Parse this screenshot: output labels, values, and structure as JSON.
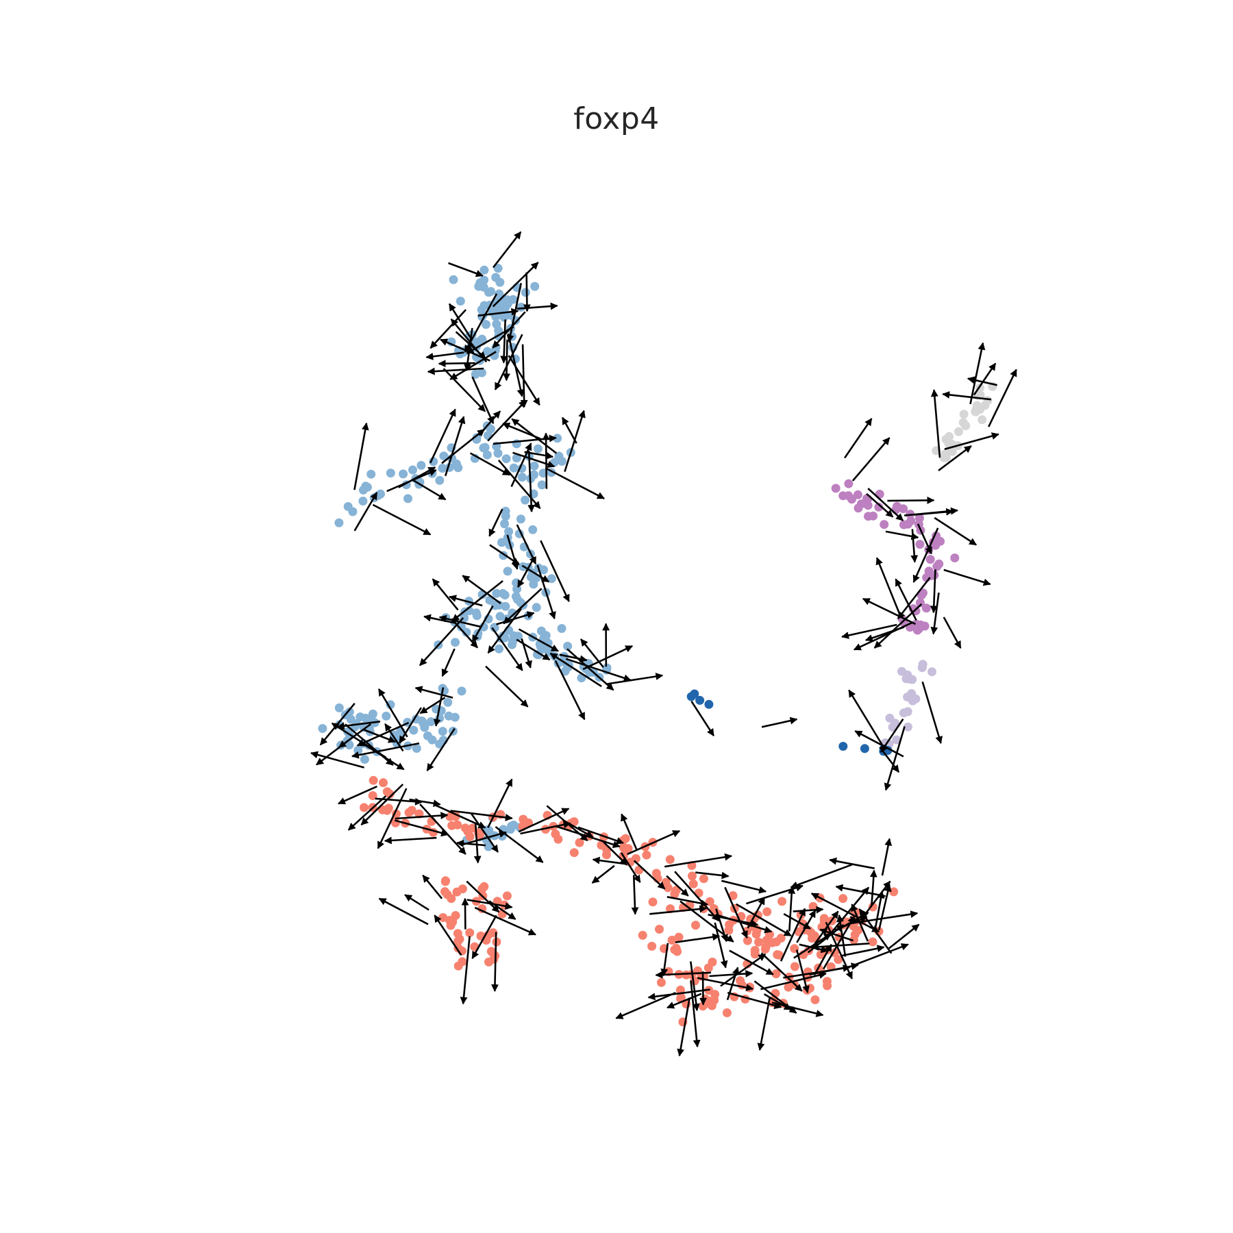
{
  "chart_data": {
    "type": "scatter",
    "title": "foxp4",
    "xlabel": "",
    "ylabel": "",
    "grid": false,
    "legend": "none",
    "xlim": [
      0,
      100
    ],
    "ylim": [
      0,
      100
    ],
    "overlay": "velocity-arrows",
    "colors": {
      "light_blue": "#86b3d6",
      "salmon": "#f7816f",
      "purple": "#bd80c0",
      "lavender": "#c7bedb",
      "grey": "#d6d6d6",
      "dark_blue": "#2166ac",
      "arrow": "#000000"
    },
    "clusters": [
      {
        "color": "light_blue",
        "points": [
          [
            33,
            88
          ],
          [
            34,
            85
          ],
          [
            32,
            83
          ],
          [
            36,
            84
          ],
          [
            35,
            80
          ],
          [
            31,
            80
          ],
          [
            33,
            78
          ]
        ],
        "spread": 2.2,
        "density": 70
      },
      {
        "color": "light_blue",
        "points": [
          [
            18,
            63
          ],
          [
            22,
            66
          ],
          [
            26,
            65
          ],
          [
            30,
            68
          ],
          [
            33,
            70
          ],
          [
            36,
            68
          ],
          [
            39,
            66
          ],
          [
            41,
            69
          ]
        ],
        "spread": 1.6,
        "density": 60
      },
      {
        "color": "light_blue",
        "points": [
          [
            35,
            62
          ],
          [
            37,
            59
          ],
          [
            38,
            57
          ],
          [
            36,
            54
          ],
          [
            34,
            52
          ],
          [
            31,
            53
          ],
          [
            30,
            50
          ]
        ],
        "spread": 2.2,
        "density": 60
      },
      {
        "color": "light_blue",
        "points": [
          [
            33,
            51
          ],
          [
            37,
            50
          ],
          [
            40,
            49
          ],
          [
            42,
            47
          ],
          [
            45,
            46
          ]
        ],
        "spread": 1.8,
        "density": 45
      },
      {
        "color": "light_blue",
        "points": [
          [
            29,
            44
          ],
          [
            28,
            41
          ],
          [
            25,
            40
          ],
          [
            21,
            41
          ],
          [
            18,
            41
          ],
          [
            24,
            37
          ]
        ],
        "spread": 2.0,
        "density": 60
      },
      {
        "color": "light_blue",
        "points": [
          [
            33,
            30
          ],
          [
            36,
            30
          ],
          [
            29,
            29
          ]
        ],
        "spread": 1.2,
        "density": 15
      },
      {
        "color": "salmon",
        "points": [
          [
            24,
            35
          ],
          [
            22,
            33
          ],
          [
            25,
            32
          ],
          [
            29,
            31
          ],
          [
            32,
            30
          ],
          [
            37,
            32
          ],
          [
            41,
            30
          ],
          [
            44,
            29
          ],
          [
            47,
            27
          ]
        ],
        "spread": 1.5,
        "density": 55
      },
      {
        "color": "salmon",
        "points": [
          [
            48,
            27
          ],
          [
            53,
            25
          ],
          [
            57,
            22
          ],
          [
            60,
            20
          ],
          [
            63,
            18
          ],
          [
            66,
            19
          ],
          [
            69,
            21
          ],
          [
            72,
            20
          ]
        ],
        "spread": 2.5,
        "density": 90
      },
      {
        "color": "salmon",
        "points": [
          [
            50,
            20
          ],
          [
            53,
            17
          ],
          [
            56,
            14
          ],
          [
            54,
            13
          ],
          [
            59,
            15
          ],
          [
            62,
            13
          ],
          [
            66,
            15
          ],
          [
            69,
            18
          ],
          [
            74,
            24
          ]
        ],
        "spread": 2.2,
        "density": 70
      },
      {
        "color": "salmon",
        "points": [
          [
            29,
            24
          ],
          [
            33,
            24
          ],
          [
            35,
            21
          ],
          [
            33,
            17
          ],
          [
            30,
            18
          ],
          [
            29,
            21
          ]
        ],
        "spread": 1.5,
        "density": 40
      },
      {
        "color": "purple",
        "points": [
          [
            69,
            65
          ],
          [
            72,
            64
          ],
          [
            75,
            63
          ],
          [
            78,
            62
          ],
          [
            79,
            59
          ],
          [
            79,
            55
          ],
          [
            78,
            51
          ],
          [
            76,
            52
          ]
        ],
        "spread": 1.4,
        "density": 55
      },
      {
        "color": "lavender",
        "points": [
          [
            78,
            48
          ],
          [
            77,
            45
          ],
          [
            76,
            42
          ],
          [
            75,
            39
          ]
        ],
        "spread": 1.0,
        "density": 20
      },
      {
        "color": "grey",
        "points": [
          [
            80,
            67
          ],
          [
            81,
            70
          ],
          [
            83,
            73
          ],
          [
            85,
            75
          ]
        ],
        "spread": 1.4,
        "density": 30
      },
      {
        "color": "dark_blue",
        "points": [
          [
            54,
            44
          ],
          [
            55,
            43.5
          ],
          [
            73,
            38
          ],
          [
            74,
            38.5
          ]
        ],
        "spread": 0.4,
        "density": 8
      }
    ]
  }
}
